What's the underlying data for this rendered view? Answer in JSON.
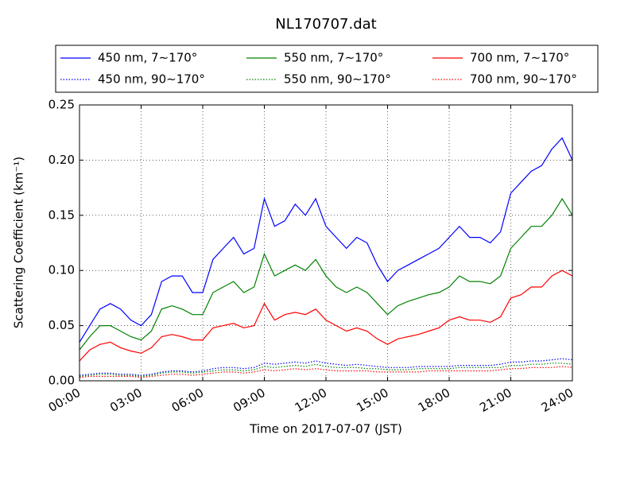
{
  "chart_data": {
    "type": "line",
    "title": "NL170707.dat",
    "xlabel": "Time on 2017-07-07 (JST)",
    "ylabel": "Scattering Coefficient (km⁻¹)",
    "x": [
      0,
      0.5,
      1,
      1.5,
      2,
      2.5,
      3,
      3.5,
      4,
      4.5,
      5,
      5.5,
      6,
      6.5,
      7,
      7.5,
      8,
      8.5,
      9,
      9.5,
      10,
      10.5,
      11,
      11.5,
      12,
      12.5,
      13,
      13.5,
      14,
      14.5,
      15,
      15.5,
      16,
      16.5,
      17,
      17.5,
      18,
      18.5,
      19,
      19.5,
      20,
      20.5,
      21,
      21.5,
      22,
      22.5,
      23,
      23.5,
      24
    ],
    "series": [
      {
        "name": "450 nm, 7∼170°",
        "color": "#0000ff",
        "linestyle": "solid",
        "values": [
          0.035,
          0.05,
          0.065,
          0.07,
          0.065,
          0.055,
          0.05,
          0.06,
          0.09,
          0.095,
          0.095,
          0.08,
          0.08,
          0.11,
          0.12,
          0.13,
          0.115,
          0.12,
          0.165,
          0.14,
          0.145,
          0.16,
          0.15,
          0.165,
          0.14,
          0.13,
          0.12,
          0.13,
          0.125,
          0.105,
          0.09,
          0.1,
          0.105,
          0.11,
          0.115,
          0.12,
          0.13,
          0.14,
          0.13,
          0.13,
          0.125,
          0.135,
          0.17,
          0.18,
          0.19,
          0.195,
          0.21,
          0.22,
          0.2
        ]
      },
      {
        "name": "450 nm, 90∼170°",
        "color": "#0000ff",
        "linestyle": "dotted",
        "values": [
          0.005,
          0.006,
          0.007,
          0.007,
          0.006,
          0.006,
          0.005,
          0.006,
          0.008,
          0.009,
          0.009,
          0.008,
          0.009,
          0.011,
          0.012,
          0.012,
          0.011,
          0.012,
          0.016,
          0.015,
          0.016,
          0.017,
          0.016,
          0.018,
          0.016,
          0.015,
          0.014,
          0.015,
          0.014,
          0.013,
          0.012,
          0.012,
          0.012,
          0.013,
          0.013,
          0.013,
          0.013,
          0.014,
          0.014,
          0.014,
          0.014,
          0.015,
          0.017,
          0.017,
          0.018,
          0.018,
          0.019,
          0.02,
          0.019
        ]
      },
      {
        "name": "550 nm, 7∼170°",
        "color": "#008000",
        "linestyle": "solid",
        "values": [
          0.028,
          0.04,
          0.05,
          0.05,
          0.045,
          0.04,
          0.037,
          0.045,
          0.065,
          0.068,
          0.065,
          0.06,
          0.06,
          0.08,
          0.085,
          0.09,
          0.08,
          0.085,
          0.115,
          0.095,
          0.1,
          0.105,
          0.1,
          0.11,
          0.095,
          0.085,
          0.08,
          0.085,
          0.08,
          0.07,
          0.06,
          0.068,
          0.072,
          0.075,
          0.078,
          0.08,
          0.085,
          0.095,
          0.09,
          0.09,
          0.088,
          0.095,
          0.12,
          0.13,
          0.14,
          0.14,
          0.15,
          0.165,
          0.15
        ]
      },
      {
        "name": "550 nm, 90∼170°",
        "color": "#008000",
        "linestyle": "dotted",
        "values": [
          0.004,
          0.005,
          0.006,
          0.006,
          0.005,
          0.005,
          0.004,
          0.005,
          0.007,
          0.008,
          0.008,
          0.007,
          0.008,
          0.009,
          0.01,
          0.01,
          0.009,
          0.01,
          0.013,
          0.012,
          0.013,
          0.014,
          0.013,
          0.015,
          0.013,
          0.012,
          0.012,
          0.012,
          0.011,
          0.011,
          0.01,
          0.01,
          0.01,
          0.011,
          0.011,
          0.011,
          0.011,
          0.012,
          0.012,
          0.012,
          0.012,
          0.012,
          0.014,
          0.014,
          0.015,
          0.015,
          0.016,
          0.016,
          0.015
        ]
      },
      {
        "name": "700 nm, 7∼170°",
        "color": "#ff0000",
        "linestyle": "solid",
        "values": [
          0.018,
          0.028,
          0.033,
          0.035,
          0.03,
          0.027,
          0.025,
          0.03,
          0.04,
          0.042,
          0.04,
          0.037,
          0.037,
          0.048,
          0.05,
          0.052,
          0.048,
          0.05,
          0.07,
          0.055,
          0.06,
          0.062,
          0.06,
          0.065,
          0.055,
          0.05,
          0.045,
          0.048,
          0.045,
          0.038,
          0.033,
          0.038,
          0.04,
          0.042,
          0.045,
          0.048,
          0.055,
          0.058,
          0.055,
          0.055,
          0.053,
          0.058,
          0.075,
          0.078,
          0.085,
          0.085,
          0.095,
          0.1,
          0.095
        ]
      },
      {
        "name": "700 nm, 90∼170°",
        "color": "#ff0000",
        "linestyle": "dotted",
        "values": [
          0.003,
          0.004,
          0.004,
          0.004,
          0.004,
          0.004,
          0.003,
          0.004,
          0.005,
          0.006,
          0.006,
          0.005,
          0.006,
          0.007,
          0.008,
          0.008,
          0.007,
          0.008,
          0.01,
          0.009,
          0.01,
          0.011,
          0.01,
          0.011,
          0.01,
          0.009,
          0.009,
          0.009,
          0.009,
          0.008,
          0.008,
          0.008,
          0.008,
          0.008,
          0.009,
          0.009,
          0.009,
          0.009,
          0.009,
          0.009,
          0.009,
          0.01,
          0.011,
          0.011,
          0.012,
          0.012,
          0.012,
          0.013,
          0.012
        ]
      }
    ],
    "xlim": [
      0,
      24
    ],
    "xticks": [
      {
        "value": 0,
        "label": "00:00"
      },
      {
        "value": 3,
        "label": "03:00"
      },
      {
        "value": 6,
        "label": "06:00"
      },
      {
        "value": 9,
        "label": "09:00"
      },
      {
        "value": 12,
        "label": "12:00"
      },
      {
        "value": 15,
        "label": "15:00"
      },
      {
        "value": 18,
        "label": "18:00"
      },
      {
        "value": 21,
        "label": "21:00"
      },
      {
        "value": 24,
        "label": "24:00"
      }
    ],
    "ylim": [
      0,
      0.25
    ],
    "yticks": [
      {
        "value": 0,
        "label": "0.00"
      },
      {
        "value": 0.05,
        "label": "0.05"
      },
      {
        "value": 0.1,
        "label": "0.10"
      },
      {
        "value": 0.15,
        "label": "0.15"
      },
      {
        "value": 0.2,
        "label": "0.20"
      },
      {
        "value": 0.25,
        "label": "0.25"
      }
    ],
    "grid": true,
    "legend": "top"
  }
}
